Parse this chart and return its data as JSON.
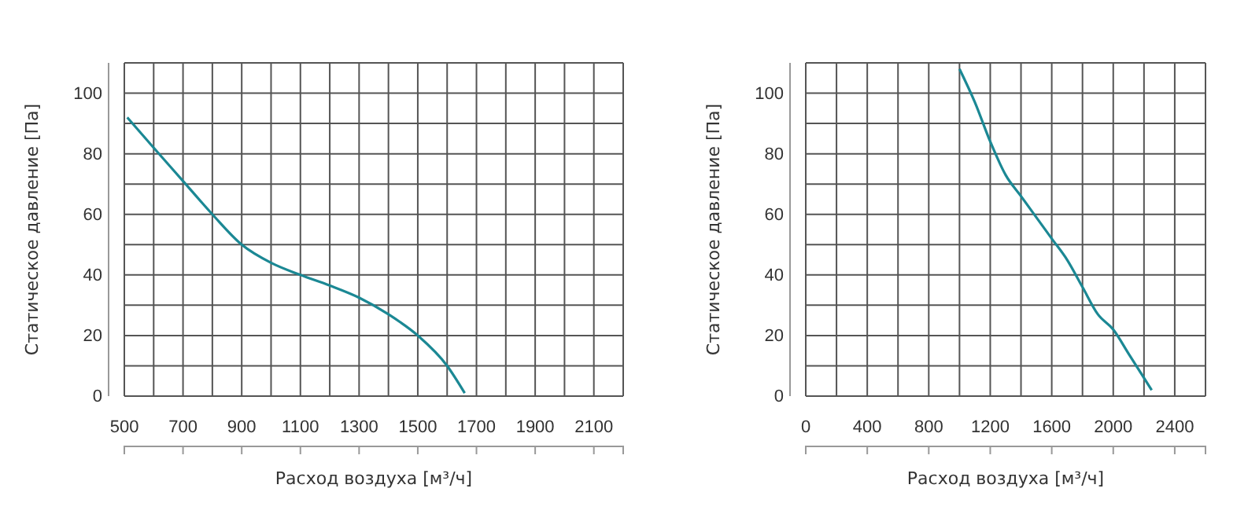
{
  "chart_data": [
    {
      "type": "line",
      "xlabel": "Расход воздуха [м³/ч]",
      "ylabel": "Статическое давление [Па]",
      "xlim": [
        500,
        2200
      ],
      "ylim": [
        0,
        110
      ],
      "grid": true,
      "marker": "none",
      "line_style": "solid",
      "xticks": [
        500,
        {
          "value": 600,
          "label": null
        },
        700,
        {
          "value": 800,
          "label": null
        },
        900,
        {
          "value": 1000,
          "label": null
        },
        1100,
        {
          "value": 1200,
          "label": null
        },
        1300,
        {
          "value": 1400,
          "label": null
        },
        1500,
        {
          "value": 1600,
          "label": null
        },
        1700,
        {
          "value": 1800,
          "label": null
        },
        1900,
        {
          "value": 2000,
          "label": null
        },
        2100,
        {
          "value": 2200,
          "label": null
        }
      ],
      "yticks": [
        0,
        {
          "value": 10,
          "label": null
        },
        20,
        {
          "value": 30,
          "label": null
        },
        40,
        {
          "value": 50,
          "label": null
        },
        60,
        {
          "value": 70,
          "label": null
        },
        80,
        {
          "value": 90,
          "label": null
        },
        100,
        {
          "value": 110,
          "label": null
        }
      ],
      "series": [
        {
          "color": "#1b8894",
          "x": [
            510,
            600,
            700,
            800,
            900,
            1000,
            1100,
            1200,
            1300,
            1400,
            1500,
            1600,
            1660
          ],
          "values": [
            92,
            82,
            71,
            60,
            50,
            44,
            40,
            36.5,
            32.5,
            27,
            20,
            10,
            1
          ]
        }
      ]
    },
    {
      "type": "line",
      "xlabel": "Расход воздуха [м³/ч]",
      "ylabel": "Статическое давление [Па]",
      "xlim": [
        0,
        2600
      ],
      "ylim": [
        0,
        110
      ],
      "grid": true,
      "marker": "none",
      "line_style": "solid",
      "xticks": [
        0,
        {
          "value": 200,
          "label": null
        },
        400,
        {
          "value": 600,
          "label": null
        },
        800,
        {
          "value": 1000,
          "label": null
        },
        1200,
        {
          "value": 1400,
          "label": null
        },
        1600,
        {
          "value": 1800,
          "label": null
        },
        2000,
        {
          "value": 2200,
          "label": null
        },
        2400,
        {
          "value": 2600,
          "label": null
        }
      ],
      "yticks": [
        0,
        {
          "value": 10,
          "label": null
        },
        20,
        {
          "value": 30,
          "label": null
        },
        40,
        {
          "value": 50,
          "label": null
        },
        60,
        {
          "value": 70,
          "label": null
        },
        80,
        {
          "value": 90,
          "label": null
        },
        100,
        {
          "value": 110,
          "label": null
        }
      ],
      "series": [
        {
          "color": "#1b8894",
          "x": [
            1000,
            1100,
            1200,
            1300,
            1400,
            1500,
            1600,
            1700,
            1800,
            1900,
            2000,
            2100,
            2200,
            2250
          ],
          "values": [
            108,
            97,
            84,
            73,
            66,
            59,
            52,
            45,
            36,
            27,
            22,
            14,
            6,
            2
          ]
        }
      ]
    }
  ]
}
